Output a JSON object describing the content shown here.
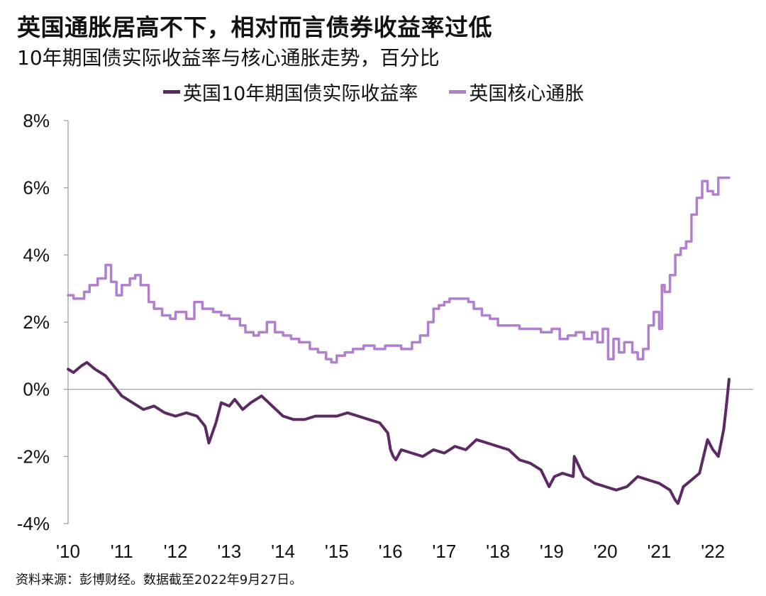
{
  "title": "英国通胀居高不下，相对而言债券收益率过低",
  "subtitle": "10年期国债实际收益率与核心通胀走势，百分比",
  "source": "资料来源：彭博财经。数据截至2022年9月27日。",
  "chart_data": {
    "type": "line",
    "title": "英国通胀居高不下，相对而言债券收益率过低",
    "subtitle": "10年期国债实际收益率与核心通胀走势，百分比",
    "x_ticks": [
      "'10",
      "'11",
      "'12",
      "'13",
      "'14",
      "'15",
      "'16",
      "'17",
      "'18",
      "'19",
      "'20",
      "'21",
      "'22"
    ],
    "x_range": [
      2010.0,
      2022.75
    ],
    "y_ticks": [
      "8%",
      "6%",
      "4%",
      "2%",
      "0%",
      "-2%",
      "-4%"
    ],
    "ylim": [
      -4,
      8
    ],
    "grid": false,
    "legend_placement": "top",
    "series": [
      {
        "name": "英国10年期国债实际收益率",
        "color": "#5b2a63",
        "x": [
          2010.0,
          2010.1,
          2010.25,
          2010.35,
          2010.5,
          2010.7,
          2010.9,
          2011.0,
          2011.2,
          2011.4,
          2011.6,
          2011.8,
          2012.0,
          2012.2,
          2012.4,
          2012.55,
          2012.62,
          2012.75,
          2012.85,
          2013.0,
          2013.1,
          2013.25,
          2013.4,
          2013.6,
          2013.8,
          2014.0,
          2014.2,
          2014.4,
          2014.6,
          2014.8,
          2015.0,
          2015.2,
          2015.4,
          2015.6,
          2015.8,
          2015.95,
          2016.0,
          2016.05,
          2016.1,
          2016.2,
          2016.4,
          2016.6,
          2016.8,
          2017.0,
          2017.2,
          2017.4,
          2017.6,
          2017.8,
          2018.0,
          2018.2,
          2018.4,
          2018.6,
          2018.8,
          2018.95,
          2019.05,
          2019.2,
          2019.4,
          2019.42,
          2019.6,
          2019.8,
          2020.0,
          2020.2,
          2020.4,
          2020.6,
          2020.8,
          2021.0,
          2021.2,
          2021.3,
          2021.35,
          2021.45,
          2021.6,
          2021.75,
          2021.9,
          2022.0,
          2022.1,
          2022.2,
          2022.25,
          2022.3
        ],
        "y": [
          0.6,
          0.5,
          0.7,
          0.8,
          0.6,
          0.4,
          0.0,
          -0.2,
          -0.4,
          -0.6,
          -0.5,
          -0.7,
          -0.8,
          -0.7,
          -0.8,
          -1.1,
          -1.6,
          -1.0,
          -0.4,
          -0.5,
          -0.3,
          -0.6,
          -0.4,
          -0.2,
          -0.5,
          -0.8,
          -0.9,
          -0.9,
          -0.8,
          -0.8,
          -0.8,
          -0.7,
          -0.8,
          -0.9,
          -1.0,
          -1.3,
          -1.8,
          -2.0,
          -2.1,
          -1.8,
          -1.9,
          -2.0,
          -1.8,
          -1.9,
          -1.7,
          -1.8,
          -1.5,
          -1.6,
          -1.7,
          -1.8,
          -2.1,
          -2.2,
          -2.4,
          -2.9,
          -2.6,
          -2.5,
          -2.6,
          -2.0,
          -2.6,
          -2.8,
          -2.9,
          -3.0,
          -2.9,
          -2.6,
          -2.7,
          -2.8,
          -3.0,
          -3.3,
          -3.4,
          -2.9,
          -2.7,
          -2.5,
          -1.5,
          -1.8,
          -2.0,
          -1.2,
          -0.5,
          0.3
        ]
      },
      {
        "name": "英国核心通胀",
        "color": "#b07fce",
        "x": [
          2010.0,
          2010.1,
          2010.3,
          2010.4,
          2010.55,
          2010.7,
          2010.8,
          2010.9,
          2011.0,
          2011.15,
          2011.25,
          2011.35,
          2011.5,
          2011.6,
          2011.75,
          2011.9,
          2012.0,
          2012.2,
          2012.35,
          2012.5,
          2012.7,
          2012.85,
          2013.0,
          2013.2,
          2013.3,
          2013.45,
          2013.55,
          2013.7,
          2013.85,
          2014.0,
          2014.15,
          2014.3,
          2014.5,
          2014.65,
          2014.8,
          2014.9,
          2015.0,
          2015.15,
          2015.3,
          2015.5,
          2015.7,
          2015.9,
          2016.0,
          2016.2,
          2016.4,
          2016.55,
          2016.7,
          2016.8,
          2016.9,
          2017.0,
          2017.1,
          2017.3,
          2017.45,
          2017.55,
          2017.7,
          2017.85,
          2018.0,
          2018.2,
          2018.4,
          2018.6,
          2018.8,
          2019.0,
          2019.15,
          2019.3,
          2019.45,
          2019.6,
          2019.75,
          2019.85,
          2019.95,
          2020.05,
          2020.15,
          2020.25,
          2020.35,
          2020.5,
          2020.6,
          2020.7,
          2020.8,
          2020.9,
          2021.0,
          2021.05,
          2021.1,
          2021.2,
          2021.3,
          2021.4,
          2021.5,
          2021.6,
          2021.7,
          2021.8,
          2021.9,
          2022.0,
          2022.1,
          2022.2,
          2022.3
        ],
        "y": [
          2.8,
          2.7,
          2.9,
          3.1,
          3.3,
          3.7,
          3.2,
          2.8,
          3.1,
          3.3,
          3.4,
          3.1,
          2.6,
          2.4,
          2.2,
          2.1,
          2.3,
          2.1,
          2.6,
          2.4,
          2.3,
          2.2,
          2.1,
          1.9,
          1.7,
          1.6,
          1.7,
          2.0,
          1.7,
          1.6,
          1.5,
          1.4,
          1.2,
          1.1,
          0.9,
          0.8,
          1.0,
          1.1,
          1.2,
          1.3,
          1.2,
          1.3,
          1.3,
          1.2,
          1.4,
          1.6,
          2.0,
          2.4,
          2.5,
          2.6,
          2.7,
          2.7,
          2.6,
          2.4,
          2.2,
          2.1,
          1.9,
          1.9,
          1.8,
          1.8,
          1.7,
          1.8,
          1.5,
          1.6,
          1.7,
          1.5,
          1.7,
          1.4,
          1.8,
          0.9,
          1.5,
          1.1,
          1.4,
          1.1,
          0.9,
          1.2,
          1.9,
          2.3,
          1.8,
          3.1,
          2.9,
          3.4,
          4.0,
          4.2,
          4.4,
          5.2,
          5.7,
          6.2,
          5.9,
          5.8,
          6.3,
          6.3,
          6.3
        ]
      }
    ]
  }
}
